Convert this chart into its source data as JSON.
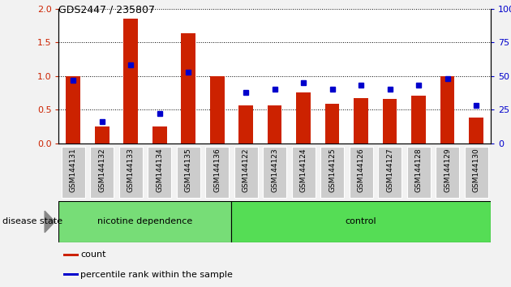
{
  "title": "GDS2447 / 235807",
  "categories": [
    "GSM144131",
    "GSM144132",
    "GSM144133",
    "GSM144134",
    "GSM144135",
    "GSM144136",
    "GSM144122",
    "GSM144123",
    "GSM144124",
    "GSM144125",
    "GSM144126",
    "GSM144127",
    "GSM144128",
    "GSM144129",
    "GSM144130"
  ],
  "counts": [
    1.0,
    0.25,
    1.85,
    0.25,
    1.63,
    1.0,
    0.57,
    0.57,
    0.76,
    0.59,
    0.67,
    0.66,
    0.71,
    1.0,
    0.39
  ],
  "percentiles": [
    47,
    16,
    58,
    22,
    53,
    null,
    38,
    40,
    45,
    40,
    43,
    40,
    43,
    48,
    28
  ],
  "bar_color": "#cc2200",
  "dot_color": "#0000cc",
  "ylim_left": [
    0,
    2
  ],
  "ylim_right": [
    0,
    100
  ],
  "yticks_left": [
    0,
    0.5,
    1.0,
    1.5,
    2.0
  ],
  "yticks_right": [
    0,
    25,
    50,
    75,
    100
  ],
  "group1_label": "nicotine dependence",
  "group2_label": "control",
  "n_group1": 6,
  "n_group2": 9,
  "group1_color_light": "#bbeeaa",
  "group1_color": "#77dd77",
  "group2_color": "#55dd55",
  "disease_state_label": "disease state",
  "legend_count_label": "count",
  "legend_pct_label": "percentile rank within the sample",
  "fig_bg": "#f2f2f2",
  "plot_bg": "#ffffff",
  "xtick_bg": "#cccccc",
  "bar_width": 0.5
}
